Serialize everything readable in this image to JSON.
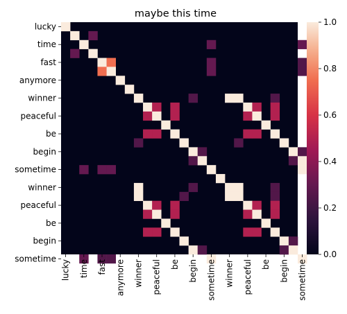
{
  "chart_data": {
    "type": "heatmap",
    "title": "maybe this time",
    "xlabel": "",
    "ylabel": "",
    "rows": [
      "lucky",
      "?",
      "time",
      "?",
      "fast",
      "?",
      "anymore",
      "?",
      "winner",
      "?",
      "peaceful",
      "?",
      "be",
      "?",
      "begin",
      "?",
      "sometime",
      "?",
      "winner",
      "?",
      "peaceful",
      "?",
      "be",
      "?",
      "begin",
      "?",
      "sometime"
    ],
    "y_tick_labels": [
      "lucky",
      "time",
      "fast",
      "anymore",
      "winner",
      "peaceful",
      "be",
      "begin",
      "sometime",
      "winner",
      "peaceful",
      "be",
      "begin",
      "sometime"
    ],
    "x_tick_labels": [
      "lucky",
      "time",
      "fast",
      "anymore",
      "winner",
      "peaceful",
      "be",
      "begin",
      "sometime",
      "winner",
      "peaceful",
      "be",
      "begin",
      "sometime"
    ],
    "grid": false,
    "legend": "colorbar-right",
    "colorbar": {
      "min": 0.0,
      "max": 1.0,
      "ticks": [
        "0.0",
        "0.2",
        "0.4",
        "0.6",
        "0.8",
        "1.0"
      ],
      "colormap": "rocket"
    },
    "size": 26,
    "cells": [
      [
        0,
        0,
        1.0
      ],
      [
        1,
        1,
        1.0
      ],
      [
        1,
        3,
        0.3
      ],
      [
        2,
        2,
        1.0
      ],
      [
        2,
        16,
        0.3
      ],
      [
        2,
        26,
        0.3
      ],
      [
        3,
        1,
        0.3
      ],
      [
        3,
        3,
        1.0
      ],
      [
        4,
        4,
        1.0
      ],
      [
        4,
        5,
        0.75
      ],
      [
        4,
        16,
        0.3
      ],
      [
        4,
        26,
        0.25
      ],
      [
        5,
        4,
        0.75
      ],
      [
        5,
        5,
        1.0
      ],
      [
        5,
        16,
        0.3
      ],
      [
        5,
        26,
        0.25
      ],
      [
        6,
        6,
        1.0
      ],
      [
        7,
        7,
        1.0
      ],
      [
        8,
        8,
        1.0
      ],
      [
        8,
        18,
        1.0
      ],
      [
        8,
        14,
        0.25
      ],
      [
        8,
        19,
        1.0
      ],
      [
        8,
        23,
        0.25
      ],
      [
        9,
        9,
        1.0
      ],
      [
        9,
        10,
        0.5
      ],
      [
        9,
        12,
        0.5
      ],
      [
        9,
        20,
        1.0
      ],
      [
        9,
        21,
        0.5
      ],
      [
        9,
        23,
        0.5
      ],
      [
        10,
        9,
        0.5
      ],
      [
        10,
        10,
        1.0
      ],
      [
        10,
        12,
        0.5
      ],
      [
        10,
        20,
        0.5
      ],
      [
        10,
        21,
        1.0
      ],
      [
        10,
        23,
        0.5
      ],
      [
        11,
        11,
        1.0
      ],
      [
        11,
        22,
        1.0
      ],
      [
        12,
        9,
        0.5
      ],
      [
        12,
        10,
        0.5
      ],
      [
        12,
        12,
        1.0
      ],
      [
        12,
        20,
        0.5
      ],
      [
        12,
        21,
        0.5
      ],
      [
        12,
        23,
        1.0
      ],
      [
        13,
        8,
        0.25
      ],
      [
        13,
        13,
        1.0
      ],
      [
        13,
        19,
        0.25
      ],
      [
        13,
        24,
        1.0
      ],
      [
        14,
        14,
        1.0
      ],
      [
        14,
        15,
        0.25
      ],
      [
        14,
        25,
        1.0
      ],
      [
        14,
        26,
        0.25
      ],
      [
        15,
        14,
        0.25
      ],
      [
        15,
        15,
        1.0
      ],
      [
        15,
        25,
        0.25
      ],
      [
        15,
        26,
        1.0
      ],
      [
        16,
        2,
        0.3
      ],
      [
        16,
        4,
        0.3
      ],
      [
        16,
        5,
        0.3
      ],
      [
        16,
        16,
        1.0
      ],
      [
        16,
        26,
        1.0
      ],
      [
        17,
        17,
        1.0
      ],
      [
        18,
        8,
        1.0
      ],
      [
        18,
        18,
        1.0
      ],
      [
        18,
        19,
        1.0
      ],
      [
        18,
        14,
        0.25
      ],
      [
        18,
        23,
        0.25
      ],
      [
        19,
        8,
        1.0
      ],
      [
        19,
        18,
        1.0
      ],
      [
        19,
        19,
        1.0
      ],
      [
        19,
        13,
        0.25
      ],
      [
        19,
        23,
        0.25
      ],
      [
        20,
        9,
        1.0
      ],
      [
        20,
        10,
        0.5
      ],
      [
        20,
        12,
        0.5
      ],
      [
        20,
        20,
        1.0
      ],
      [
        20,
        21,
        0.5
      ],
      [
        20,
        23,
        0.5
      ],
      [
        21,
        9,
        0.5
      ],
      [
        21,
        10,
        1.0
      ],
      [
        21,
        12,
        0.5
      ],
      [
        21,
        20,
        0.5
      ],
      [
        21,
        21,
        1.0
      ],
      [
        21,
        23,
        0.5
      ],
      [
        22,
        11,
        1.0
      ],
      [
        22,
        22,
        1.0
      ],
      [
        23,
        9,
        0.5
      ],
      [
        23,
        10,
        0.5
      ],
      [
        23,
        12,
        1.0
      ],
      [
        23,
        20,
        0.5
      ],
      [
        23,
        21,
        0.5
      ],
      [
        23,
        23,
        1.0
      ],
      [
        24,
        13,
        1.0
      ],
      [
        24,
        24,
        1.0
      ],
      [
        24,
        25,
        0.25
      ],
      [
        25,
        14,
        1.0
      ],
      [
        25,
        15,
        0.25
      ],
      [
        25,
        24,
        0.25
      ],
      [
        25,
        25,
        1.0
      ],
      [
        26,
        2,
        0.3
      ],
      [
        26,
        4,
        0.25
      ],
      [
        26,
        5,
        0.25
      ],
      [
        26,
        16,
        1.0
      ],
      [
        26,
        26,
        1.0
      ]
    ]
  }
}
